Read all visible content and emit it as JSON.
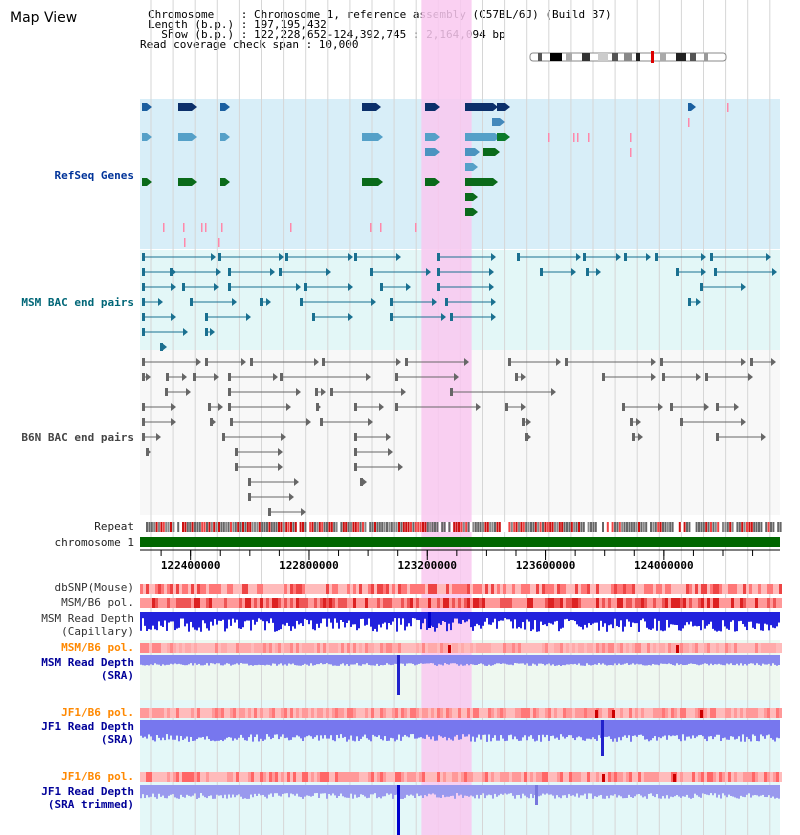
{
  "app": {
    "title": "Map View"
  },
  "header": {
    "chromosome_line": "Chromosome    : Chromosome 1, reference assembly (C57BL/6J) (Build 37)",
    "length_line": "Length (b.p.) : 197,195,432",
    "show_line": "  Show (b.p.) : 122,228,652-124,392,745 : 2,164,094 bp",
    "coverage_line": "Read coverage check span : 10,000"
  },
  "region": {
    "start": 122228652,
    "end": 124392745,
    "highlight_start": 123180000,
    "highlight_end": 123350000
  },
  "tracks": {
    "refseq": {
      "label": "RefSeq Genes",
      "color": "#003399"
    },
    "msm_bac": {
      "label": "MSM BAC end pairs",
      "color": "#006688"
    },
    "b6n_bac": {
      "label": "B6N BAC end pairs",
      "color": "#444444"
    },
    "repeat": {
      "label": "Repeat"
    },
    "chromosome": {
      "label": "chromosome 1"
    },
    "dbsnp": {
      "label": "dbSNP(Mouse)"
    },
    "msm_b6_pol_1": {
      "label": "MSM/B6 pol."
    },
    "msm_depth_cap": {
      "label": "MSM Read Depth\n(Capillary)"
    },
    "msm_b6_pol_2": {
      "label": "MSM/B6 pol."
    },
    "msm_depth_sra": {
      "label": "MSM Read Depth\n(SRA)"
    },
    "jf1_b6_pol_1": {
      "label": "JF1/B6 pol."
    },
    "jf1_depth_sra": {
      "label": "JF1 Read Depth\n(SRA)"
    },
    "jf1_b6_pol_2": {
      "label": "JF1/B6 pol."
    },
    "jf1_depth_trim": {
      "label": "JF1 Read Depth\n(SRA trimmed)"
    }
  },
  "axis": {
    "ticks": [
      "122400000",
      "122800000",
      "123200000",
      "123600000",
      "124000000"
    ]
  },
  "colors": {
    "refseq_bg": "#d8eef8",
    "bac_bg": "#e3f7f7",
    "highlight": "#f9c8f0",
    "label_blue": "#000099",
    "label_orange": "#ff8800",
    "label_teal": "#006677",
    "chrom_green": "#006600"
  }
}
